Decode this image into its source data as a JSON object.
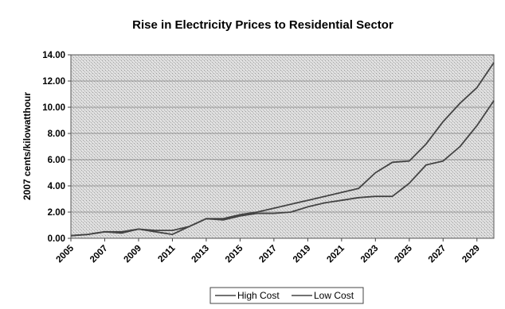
{
  "chart_data": {
    "type": "line",
    "title": "Rise in Electricity Prices to Residential Sector",
    "xlabel": "",
    "ylabel": "2007 cents/kilowatthour",
    "xlim": [
      2005,
      2030
    ],
    "ylim": [
      0,
      14
    ],
    "yticks": [
      "0.00",
      "2.00",
      "4.00",
      "6.00",
      "8.00",
      "10.00",
      "12.00",
      "14.00"
    ],
    "xticks": [
      "2005",
      "2007",
      "2009",
      "2011",
      "2013",
      "2015",
      "2017",
      "2019",
      "2021",
      "2023",
      "2025",
      "2027",
      "2029"
    ],
    "grid": true,
    "legend_position": "bottom",
    "x": [
      2005,
      2006,
      2007,
      2008,
      2009,
      2010,
      2011,
      2012,
      2013,
      2014,
      2015,
      2016,
      2017,
      2018,
      2019,
      2020,
      2021,
      2022,
      2023,
      2024,
      2025,
      2026,
      2027,
      2028,
      2029,
      2030
    ],
    "series": [
      {
        "name": "High Cost",
        "values": [
          0.2,
          0.3,
          0.5,
          0.5,
          0.7,
          0.6,
          0.6,
          0.9,
          1.5,
          1.5,
          1.8,
          2.0,
          2.3,
          2.6,
          2.9,
          3.2,
          3.5,
          3.8,
          5.0,
          5.8,
          5.9,
          7.2,
          8.9,
          10.3,
          11.5,
          13.4
        ]
      },
      {
        "name": "Low Cost",
        "values": [
          0.2,
          0.3,
          0.5,
          0.4,
          0.7,
          0.5,
          0.3,
          0.9,
          1.5,
          1.4,
          1.7,
          1.9,
          1.9,
          2.0,
          2.4,
          2.7,
          2.9,
          3.1,
          3.2,
          3.2,
          4.2,
          5.6,
          5.9,
          7.0,
          8.6,
          10.5
        ]
      }
    ]
  }
}
